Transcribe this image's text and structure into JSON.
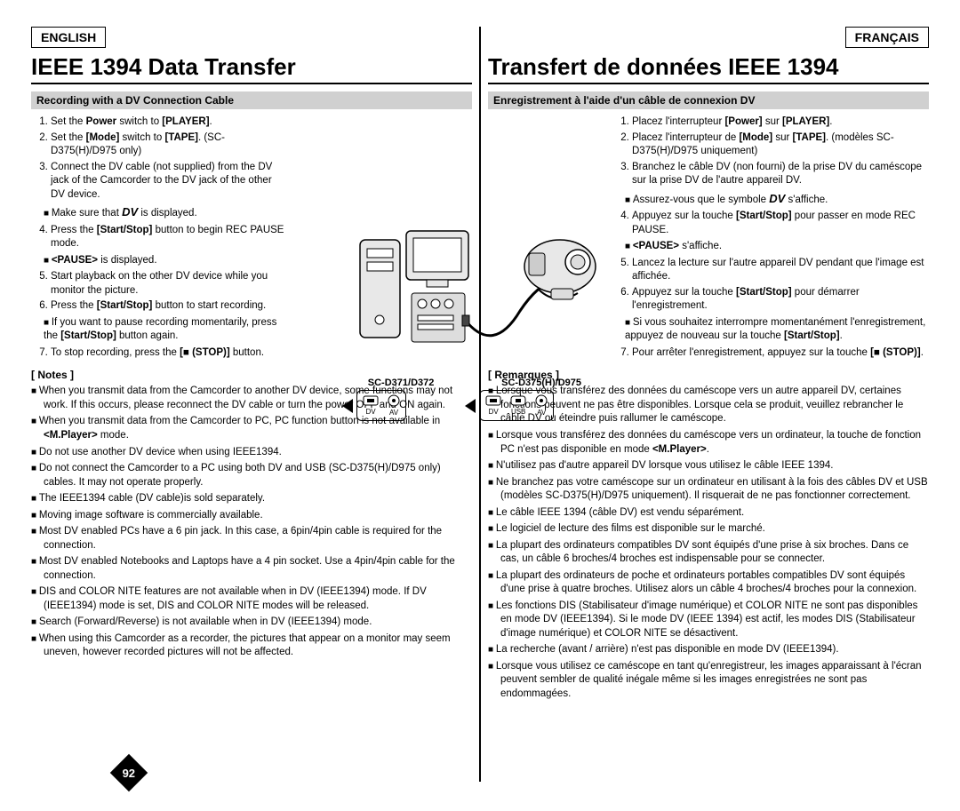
{
  "left": {
    "lang": "ENGLISH",
    "title": "IEEE 1394 Data Transfer",
    "subtitle": "Recording with a DV Connection Cable",
    "steps": [
      "Set the <b>Power</b> switch to <b>[PLAYER]</b>.",
      "Set the <b>[Mode]</b> switch to <b>[TAPE]</b>. (SC-D375(H)/D975 only)",
      "Connect the DV cable (not supplied) from the DV jack of the Camcorder to the DV jack of the other DV device.",
      "Press the <b>[Start/Stop]</b> button to begin REC PAUSE mode.",
      "Start playback on the other DV device while you monitor the picture.",
      "Press the <b>[Start/Stop]</b> button to start recording.",
      "To stop recording, press the <b>[■ (STOP)]</b> button."
    ],
    "sub3": "Make sure that <span class='dv-icon'>DV</span> is displayed.",
    "sub4": "<b>&lt;PAUSE&gt;</b> is displayed.",
    "sub6": "If you want to pause recording momentarily, press the <b>[Start/Stop]</b> button again.",
    "notes_head": "[ Notes ]",
    "notes": [
      "When you transmit data from the Camcorder to another DV device, some functions may not work. If this occurs, please reconnect the DV cable or turn the power OFF and ON again.",
      "When you transmit data from the Camcorder to PC, PC function button is not available in <b>&lt;M.Player&gt;</b> mode.",
      "Do not use another DV device when using IEEE1394.",
      "Do not connect the Camcorder to a PC using both DV and USB (SC-D375(H)/D975 only) cables. It may not operate properly.",
      "The IEEE1394 cable (DV cable)is sold separately.",
      "Moving image software is commercially available.",
      "Most DV enabled PCs have a 6 pin jack. In this case, a 6pin/4pin cable is required for the connection.",
      "Most DV enabled Notebooks and Laptops have a 4 pin socket. Use a 4pin/4pin cable for the connection.",
      "DIS and COLOR NITE features are not available when in DV (IEEE1394) mode. If DV (IEEE1394) mode is set, DIS and COLOR NITE modes will be released.",
      "Search (Forward/Reverse) is not available when in DV (IEEE1394) mode.",
      "When using this Camcorder as a recorder, the pictures that appear on a monitor may seem uneven, however recorded pictures will not be affected."
    ]
  },
  "right": {
    "lang": "FRANÇAIS",
    "title": "Transfert de données IEEE 1394",
    "subtitle": "Enregistrement à l'aide d'un câble de connexion DV",
    "steps": [
      "Placez l'interrupteur <b>[Power]</b> sur <b>[PLAYER]</b>.",
      "Placez l'interrupteur de <b>[Mode]</b> sur <b>[TAPE]</b>. (modèles SC-D375(H)/D975 uniquement)",
      "Branchez le câble DV (non fourni) de la prise DV du caméscope sur la prise DV de l'autre appareil DV.",
      "Appuyez sur la touche <b>[Start/Stop]</b> pour passer en mode REC PAUSE.",
      "Lancez la lecture sur l'autre appareil DV pendant que l'image est affichée.",
      "Appuyez sur la touche <b>[Start/Stop]</b> pour démarrer l'enregistrement.",
      "Pour arrêter l'enregistrement, appuyez sur la touche <b>[■ (STOP)]</b>."
    ],
    "sub3": "Assurez-vous que le symbole <span class='dv-icon'>DV</span> s'affiche.",
    "sub4": "<b>&lt;PAUSE&gt;</b> s'affiche.",
    "sub6": "Si vous souhaitez interrompre momentanément l'enregistrement, appuyez de nouveau sur la touche <b>[Start/Stop]</b>.",
    "notes_head": "[ Remarques ]",
    "notes": [
      "Lorsque vous transférez des données du caméscope vers un autre appareil DV, certaines fonctions peuvent ne pas être disponibles. Lorsque cela se produit, veuillez rebrancher le câble DV ou éteindre puis rallumer le caméscope.",
      "Lorsque vous transférez des données du caméscope vers un ordinateur, la touche de fonction PC n'est pas disponible en mode <b>&lt;M.Player&gt;</b>.",
      "N'utilisez pas d'autre appareil DV lorsque vous utilisez le câble IEEE 1394.",
      "Ne branchez pas votre caméscope sur un ordinateur en utilisant à la fois des câbles DV et USB (modèles SC-D375(H)/D975 uniquement). Il risquerait de ne pas fonctionner correctement.",
      "Le câble IEEE 1394 (câble DV) est vendu séparément.",
      "Le logiciel de lecture des films est disponible sur le marché.",
      "La plupart des ordinateurs compatibles DV sont équipés d'une prise à six broches. Dans ce cas, un câble 6 broches/4 broches est indispensable pour se connecter.",
      "La plupart des ordinateurs de poche et ordinateurs portables compatibles DV sont équipés d'une prise à quatre broches. Utilisez alors un câble 4 broches/4 broches pour la connexion.",
      "Les fonctions DIS (Stabilisateur d'image numérique) et COLOR NITE ne sont pas disponibles en mode DV (IEEE1394). Si le mode DV (IEEE 1394) est actif, les modes DIS (Stabilisateur d'image numérique) et COLOR NITE se désactivent.",
      "La recherche (avant / arrière) n'est pas disponible en mode DV (IEEE1394).",
      "Lorsque vous utilisez ce caméscope en tant qu'enregistreur, les images apparaissant à l'écran peuvent sembler de qualité inégale même si les images enregistrées ne sont pas endommagées."
    ]
  },
  "diagram": {
    "model1": "SC-D371/D372",
    "model2": "SC-D375(H)/D975",
    "ports1": [
      "DV",
      "AV"
    ],
    "ports2": [
      "DV",
      "USB",
      "AV"
    ]
  },
  "page_number": "92"
}
